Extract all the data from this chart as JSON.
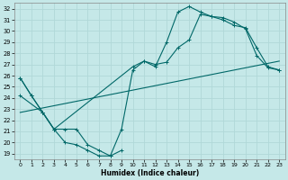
{
  "xlabel": "Humidex (Indice chaleur)",
  "background_color": "#c5e8e8",
  "grid_color": "#b0d8d8",
  "line_color": "#006868",
  "xlim": [
    -0.5,
    23.5
  ],
  "ylim": [
    18.5,
    32.5
  ],
  "yticks": [
    19,
    20,
    21,
    22,
    23,
    24,
    25,
    26,
    27,
    28,
    29,
    30,
    31,
    32
  ],
  "xticks": [
    0,
    1,
    2,
    3,
    4,
    5,
    6,
    7,
    8,
    9,
    10,
    11,
    12,
    13,
    14,
    15,
    16,
    17,
    18,
    19,
    20,
    21,
    22,
    23
  ],
  "line1_x": [
    0,
    1,
    2,
    3,
    4,
    5,
    6,
    7,
    8,
    9,
    10,
    11,
    12,
    13,
    14,
    15,
    16,
    17,
    18,
    19,
    20,
    21,
    22,
    23
  ],
  "line1_y": [
    25.8,
    24.2,
    22.7,
    21.2,
    21.2,
    21.2,
    19.8,
    19.3,
    18.8,
    21.2,
    26.5,
    27.3,
    26.8,
    29.0,
    31.7,
    32.2,
    31.7,
    31.3,
    31.0,
    30.5,
    30.3,
    28.5,
    26.8,
    26.5
  ],
  "line2_x": [
    0,
    1,
    2,
    3,
    10,
    11,
    12,
    13,
    14,
    15,
    16,
    17,
    18,
    19,
    20,
    21,
    22,
    23
  ],
  "line2_y": [
    25.8,
    24.2,
    22.7,
    21.2,
    26.8,
    27.3,
    27.0,
    27.2,
    28.5,
    29.2,
    31.5,
    31.3,
    31.2,
    30.8,
    30.2,
    27.8,
    26.7,
    26.5
  ],
  "line3_x": [
    0,
    1,
    2,
    3,
    4,
    5,
    6,
    7,
    8,
    9,
    10,
    11,
    12,
    13,
    14,
    15,
    16,
    17,
    18,
    19,
    20,
    21,
    22,
    23
  ],
  "line3_y": [
    22.7,
    22.9,
    23.1,
    23.3,
    23.5,
    23.7,
    23.9,
    24.1,
    24.3,
    24.5,
    24.7,
    24.9,
    25.1,
    25.3,
    25.5,
    25.7,
    25.9,
    26.1,
    26.3,
    26.5,
    26.7,
    26.9,
    27.1,
    27.3
  ],
  "line4_x": [
    0,
    2,
    3,
    4,
    5,
    6,
    7,
    8,
    9
  ],
  "line4_y": [
    24.2,
    22.7,
    21.2,
    20.0,
    19.8,
    19.3,
    18.8,
    18.8,
    19.3
  ]
}
